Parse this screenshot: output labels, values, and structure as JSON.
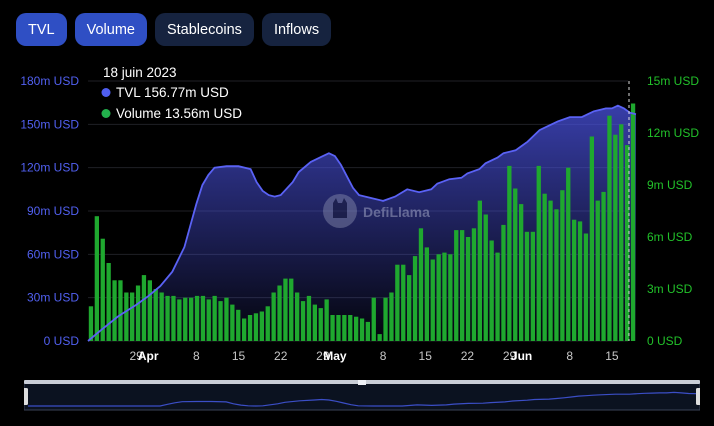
{
  "tabs": [
    {
      "label": "TVL",
      "active": true
    },
    {
      "label": "Volume",
      "active": true
    },
    {
      "label": "Stablecoins",
      "active": false
    },
    {
      "label": "Inflows",
      "active": false
    }
  ],
  "tooltip": {
    "date": "18 juin 2023",
    "rows": [
      {
        "name": "TVL",
        "value": "156.77m USD",
        "color": "#4f5ef0"
      },
      {
        "name": "Volume",
        "value": "13.56m USD",
        "color": "#22b14c"
      }
    ]
  },
  "watermark": "DefiLlama",
  "colors": {
    "tvl_line": "#5a62f5",
    "volume_bar": "#1fa82f",
    "left_axis": "#5160f0",
    "right_axis": "#22c12a"
  },
  "chart_data": {
    "type": "bar",
    "grid": true,
    "left_axis": {
      "ticks": [
        "0 USD",
        "30m USD",
        "60m USD",
        "90m USD",
        "120m USD",
        "150m USD",
        "180m USD"
      ],
      "range": [
        0,
        180
      ]
    },
    "right_axis": {
      "ticks": [
        "0 USD",
        "3m USD",
        "6m USD",
        "9m USD",
        "12m USD",
        "15m USD"
      ],
      "range": [
        0,
        15
      ]
    },
    "x_ticks": [
      {
        "label": "29",
        "day": 8,
        "bold": false
      },
      {
        "label": "Apr",
        "day": 10,
        "bold": true
      },
      {
        "label": "8",
        "day": 18,
        "bold": false
      },
      {
        "label": "15",
        "day": 25,
        "bold": false
      },
      {
        "label": "22",
        "day": 32,
        "bold": false
      },
      {
        "label": "29",
        "day": 39,
        "bold": false
      },
      {
        "label": "May",
        "day": 41,
        "bold": true
      },
      {
        "label": "8",
        "day": 49,
        "bold": false
      },
      {
        "label": "15",
        "day": 56,
        "bold": false
      },
      {
        "label": "22",
        "day": 63,
        "bold": false
      },
      {
        "label": "29",
        "day": 70,
        "bold": false
      },
      {
        "label": "Jun",
        "day": 72,
        "bold": true
      },
      {
        "label": "8",
        "day": 80,
        "bold": false
      },
      {
        "label": "15",
        "day": 87,
        "bold": false
      }
    ],
    "days": 91,
    "series": [
      {
        "name": "TVL",
        "points": [
          [
            0,
            0
          ],
          [
            2,
            7
          ],
          [
            5,
            17
          ],
          [
            8,
            25
          ],
          [
            10,
            31
          ],
          [
            12,
            38
          ],
          [
            14,
            48
          ],
          [
            16,
            65
          ],
          [
            17,
            80
          ],
          [
            18,
            95
          ],
          [
            19,
            108
          ],
          [
            20,
            115
          ],
          [
            21,
            120
          ],
          [
            23,
            121
          ],
          [
            25,
            121
          ],
          [
            27,
            119
          ],
          [
            28,
            110
          ],
          [
            29,
            104
          ],
          [
            30,
            101
          ],
          [
            31,
            100
          ],
          [
            32,
            101
          ],
          [
            34,
            110
          ],
          [
            35,
            117
          ],
          [
            37,
            124
          ],
          [
            39,
            128
          ],
          [
            40,
            130
          ],
          [
            41,
            128
          ],
          [
            42,
            122
          ],
          [
            43,
            114
          ],
          [
            44,
            106
          ],
          [
            45,
            101
          ],
          [
            47,
            99
          ],
          [
            49,
            97
          ],
          [
            51,
            100
          ],
          [
            53,
            105
          ],
          [
            55,
            103
          ],
          [
            57,
            105
          ],
          [
            58,
            109
          ],
          [
            60,
            112
          ],
          [
            62,
            113
          ],
          [
            63,
            116
          ],
          [
            65,
            119
          ],
          [
            66,
            123
          ],
          [
            68,
            127
          ],
          [
            69,
            130
          ],
          [
            71,
            132
          ],
          [
            72,
            135
          ],
          [
            73,
            138
          ],
          [
            74,
            142
          ],
          [
            75,
            146
          ],
          [
            76,
            148
          ],
          [
            77,
            150
          ],
          [
            78,
            152
          ],
          [
            80,
            155
          ],
          [
            82,
            155
          ],
          [
            83,
            157
          ],
          [
            84,
            159
          ],
          [
            85,
            160
          ],
          [
            86,
            161
          ],
          [
            87,
            161
          ],
          [
            88,
            163
          ],
          [
            89,
            161
          ],
          [
            90,
            158
          ],
          [
            91,
            157
          ]
        ]
      },
      {
        "name": "Volume",
        "values": [
          2.0,
          7.2,
          5.9,
          4.5,
          3.5,
          3.5,
          2.8,
          2.8,
          3.2,
          3.8,
          3.5,
          3.0,
          2.8,
          2.6,
          2.6,
          2.4,
          2.5,
          2.5,
          2.6,
          2.6,
          2.4,
          2.6,
          2.3,
          2.5,
          2.1,
          1.8,
          1.3,
          1.5,
          1.6,
          1.7,
          2.0,
          2.8,
          3.2,
          3.6,
          3.6,
          2.8,
          2.3,
          2.6,
          2.1,
          1.9,
          2.4,
          1.5,
          1.5,
          1.5,
          1.5,
          1.4,
          1.3,
          1.1,
          2.5,
          0.4,
          2.5,
          2.8,
          4.4,
          4.4,
          3.8,
          4.9,
          6.5,
          5.4,
          4.7,
          5.0,
          5.1,
          5.0,
          6.4,
          6.4,
          6.0,
          6.5,
          8.1,
          7.3,
          5.8,
          5.1,
          6.7,
          10.1,
          8.8,
          7.9,
          6.3,
          6.3,
          10.1,
          8.5,
          8.1,
          7.6,
          8.7,
          10.0,
          7.0,
          6.9,
          6.2,
          11.8,
          8.1,
          8.6,
          13.0,
          11.9,
          12.5,
          11.3,
          13.7
        ]
      }
    ]
  }
}
